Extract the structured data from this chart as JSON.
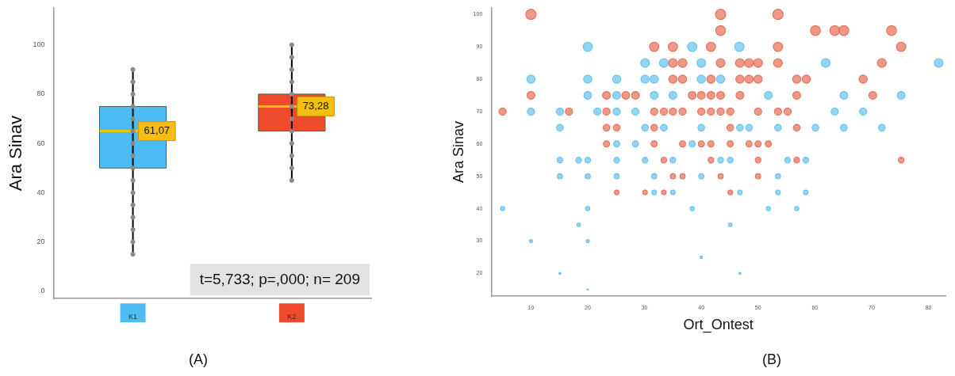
{
  "chart_data": [
    {
      "type": "box",
      "categories": [
        "K1",
        "K2"
      ],
      "ylabel": "Ara Sinav",
      "ylim": [
        -3,
        115
      ],
      "yticks": [
        0,
        20,
        40,
        60,
        80,
        100
      ],
      "colors": [
        "#4dbcf5",
        "#ee4a2c"
      ],
      "boxes": [
        {
          "low": 15,
          "q1": 50,
          "median": 65,
          "q3": 75,
          "high": 90
        },
        {
          "low": 45,
          "q1": 65,
          "median": 75,
          "q3": 80,
          "high": 100
        }
      ],
      "series": [
        {
          "type": "scatter",
          "color": "#8a8a8a",
          "x": [
            "K1",
            "K1",
            "K1",
            "K1",
            "K1",
            "K1",
            "K1",
            "K1",
            "K1",
            "K1",
            "K1",
            "K1",
            "K1",
            "K1",
            "K1",
            "K1",
            "K2",
            "K2",
            "K2",
            "K2",
            "K2",
            "K2",
            "K2",
            "K2",
            "K2",
            "K2",
            "K2",
            "K2"
          ],
          "values": [
            15,
            20,
            25,
            30,
            35,
            40,
            45,
            50,
            55,
            60,
            65,
            70,
            75,
            80,
            85,
            90,
            45,
            50,
            55,
            60,
            65,
            70,
            75,
            80,
            85,
            90,
            95,
            100
          ]
        }
      ],
      "marker": "circle",
      "annotations": [
        {
          "text": "61,07",
          "x": "K1",
          "y": 65
        },
        {
          "text": "73,28",
          "x": "K2",
          "y": 75
        },
        "t=5,733; p=,000; n= 209",
        "(A)"
      ]
    },
    {
      "type": "bubble",
      "xlabel": "Ort_Ontest",
      "ylabel": "Ara Sinav",
      "xlim": [
        3,
        83
      ],
      "xticks": [
        10,
        20,
        30,
        40,
        50,
        60,
        70,
        80
      ],
      "ylim": [
        13,
        102
      ],
      "yticks": [
        20,
        30,
        40,
        50,
        60,
        70,
        80,
        90,
        100
      ],
      "series": [
        {
          "color": "#6cc4ef",
          "x": [
            20,
            38.4,
            46.7,
            30.1,
            33.4,
            40,
            61.9,
            81.8,
            10,
            20,
            25.1,
            30.1,
            31.7,
            40,
            43.4,
            20,
            25.1,
            31.7,
            35,
            51.8,
            65.1,
            75.2,
            10,
            15.1,
            21.7,
            25.1,
            28.4,
            63.5,
            68.5,
            15.1,
            30.1,
            33.4,
            40,
            46.8,
            48.4,
            53.5,
            60.1,
            65.1,
            71.8,
            25.1,
            28.4,
            38.4,
            15.1,
            18.4,
            20,
            25.1,
            30.1,
            35,
            43.4,
            45.1,
            55.2,
            58.4,
            15.1,
            20,
            25.1,
            31.7,
            40,
            53.5,
            31.7,
            35,
            46.8,
            53.5,
            58.4,
            5,
            20,
            38.4,
            51.8,
            56.8,
            18.4,
            45.1,
            10,
            20,
            40,
            15.1,
            46.8,
            20
          ],
          "values": [
            90,
            90,
            90,
            85,
            85,
            85,
            85,
            85,
            80,
            80,
            80,
            80,
            80,
            80,
            80,
            75,
            75,
            75,
            75,
            75,
            75,
            75,
            70,
            70,
            70,
            70,
            70,
            70,
            70,
            65,
            65,
            65,
            65,
            65,
            65,
            65,
            65,
            65,
            65,
            60,
            60,
            60,
            55,
            55,
            55,
            55,
            55,
            55,
            55,
            55,
            55,
            55,
            50,
            50,
            50,
            50,
            50,
            50,
            45,
            45,
            45,
            45,
            45,
            40,
            40,
            40,
            40,
            40,
            35,
            35,
            30,
            30,
            25,
            20,
            20,
            15
          ],
          "sizes": [
            0.81,
            0.81,
            0.81,
            0.72,
            0.72,
            0.72,
            0.72,
            0.72,
            0.64,
            0.64,
            0.64,
            0.64,
            0.64,
            0.64,
            0.64,
            0.56,
            0.56,
            0.56,
            0.56,
            0.56,
            0.56,
            0.56,
            0.49,
            0.49,
            0.49,
            0.49,
            0.49,
            0.49,
            0.49,
            0.42,
            0.42,
            0.42,
            0.42,
            0.42,
            0.42,
            0.42,
            0.42,
            0.42,
            0.42,
            0.36,
            0.36,
            0.36,
            0.3,
            0.3,
            0.3,
            0.3,
            0.3,
            0.3,
            0.3,
            0.3,
            0.3,
            0.3,
            0.25,
            0.25,
            0.25,
            0.25,
            0.25,
            0.25,
            0.2,
            0.2,
            0.2,
            0.2,
            0.2,
            0.16,
            0.16,
            0.16,
            0.16,
            0.16,
            0.12,
            0.12,
            0.09,
            0.09,
            0.06,
            0.04,
            0.04,
            0.02
          ]
        },
        {
          "color": "#e8735d",
          "x": [
            10,
            43.4,
            53.5,
            43.4,
            60.1,
            63.5,
            65.1,
            73.5,
            31.7,
            35,
            41.7,
            53.5,
            75.2,
            35,
            36.7,
            43.4,
            46.8,
            48.4,
            50,
            53.5,
            71.8,
            35,
            36.7,
            41.7,
            46.8,
            48.4,
            50,
            56.8,
            58.5,
            68.5,
            10,
            23.3,
            26.7,
            28.4,
            38.4,
            40,
            41.7,
            43.4,
            46.8,
            56.8,
            70.2,
            5,
            16.7,
            23.3,
            31.7,
            33.4,
            35,
            36.7,
            40,
            41.7,
            43.4,
            45.1,
            50,
            53.5,
            55.2,
            23.3,
            25.1,
            31.7,
            45.1,
            56.8,
            23.3,
            31.7,
            36.7,
            40,
            41.7,
            45.1,
            48.4,
            50,
            51.8,
            33.4,
            41.7,
            50,
            56.8,
            75.2,
            35,
            36.7,
            43.4,
            50,
            25.1,
            30.1,
            33.4,
            45.1
          ],
          "values": [
            100,
            100,
            100,
            95,
            95,
            95,
            95,
            95,
            90,
            90,
            90,
            90,
            90,
            85,
            85,
            85,
            85,
            85,
            85,
            85,
            85,
            80,
            80,
            80,
            80,
            80,
            80,
            80,
            80,
            80,
            75,
            75,
            75,
            75,
            75,
            75,
            75,
            75,
            75,
            75,
            75,
            70,
            70,
            70,
            70,
            70,
            70,
            70,
            70,
            70,
            70,
            70,
            70,
            70,
            70,
            65,
            65,
            65,
            65,
            65,
            60,
            60,
            60,
            60,
            60,
            60,
            60,
            60,
            60,
            55,
            55,
            55,
            55,
            55,
            50,
            50,
            50,
            50,
            45,
            45,
            45,
            45
          ],
          "sizes": [
            1,
            1,
            1,
            0.9,
            0.9,
            0.9,
            0.9,
            0.9,
            0.81,
            0.81,
            0.81,
            0.81,
            0.81,
            0.72,
            0.72,
            0.72,
            0.72,
            0.72,
            0.72,
            0.72,
            0.72,
            0.64,
            0.64,
            0.64,
            0.64,
            0.64,
            0.64,
            0.64,
            0.64,
            0.64,
            0.56,
            0.56,
            0.56,
            0.56,
            0.56,
            0.56,
            0.56,
            0.56,
            0.56,
            0.56,
            0.56,
            0.49,
            0.49,
            0.49,
            0.49,
            0.49,
            0.49,
            0.49,
            0.49,
            0.49,
            0.49,
            0.49,
            0.49,
            0.49,
            0.49,
            0.42,
            0.42,
            0.42,
            0.42,
            0.42,
            0.36,
            0.36,
            0.36,
            0.36,
            0.36,
            0.36,
            0.36,
            0.36,
            0.36,
            0.3,
            0.3,
            0.3,
            0.3,
            0.3,
            0.25,
            0.25,
            0.25,
            0.25,
            0.2,
            0.2,
            0.2,
            0.2
          ]
        }
      ],
      "annotations": [
        "(B)"
      ]
    }
  ]
}
